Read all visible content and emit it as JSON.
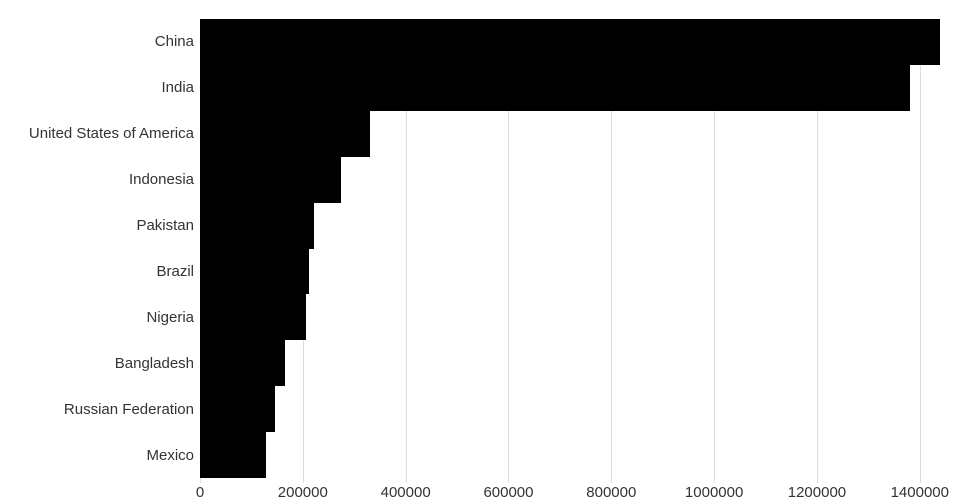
{
  "chart_data": {
    "type": "bar",
    "orientation": "horizontal",
    "title": "",
    "xlabel": "",
    "ylabel": "",
    "categories": [
      "China",
      "India",
      "United States of America",
      "Indonesia",
      "Pakistan",
      "Brazil",
      "Nigeria",
      "Bangladesh",
      "Russian Federation",
      "Mexico"
    ],
    "values": [
      1439324,
      1380004,
      331003,
      273524,
      220892,
      212559,
      206140,
      164689,
      145934,
      128933
    ],
    "xlim": [
      0,
      1439324
    ],
    "x_ticks": [
      0,
      200000,
      400000,
      600000,
      800000,
      1000000,
      1200000,
      1400000
    ],
    "x_tick_labels": [
      "0",
      "200000",
      "400000",
      "600000",
      "800000",
      "1000000",
      "1200000",
      "1400000"
    ],
    "grid": "vertical-on",
    "legend": "none",
    "colors": {
      "bar": "#000000",
      "gridline": "#dcdcdc",
      "tick": "#dcdcdc",
      "label": "#333333",
      "background": "#ffffff"
    }
  }
}
